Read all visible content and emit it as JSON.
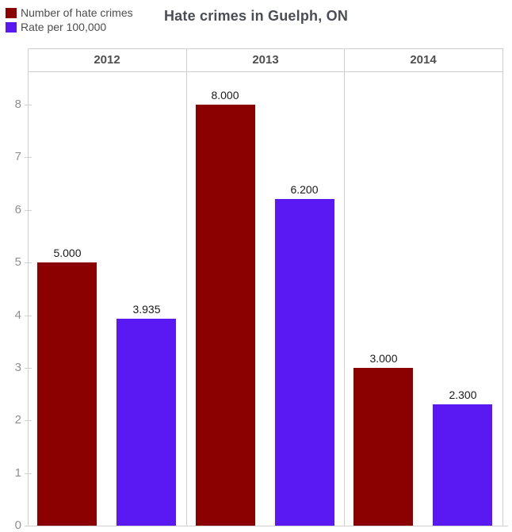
{
  "title": "Hate crimes in Guelph, ON",
  "legend": {
    "items": [
      {
        "label": "Number of hate crimes",
        "color": "#8B0000"
      },
      {
        "label": "Rate per 100,000",
        "color": "#5A18F2"
      }
    ]
  },
  "chart_data": {
    "type": "bar",
    "title": "Hate crimes in Guelph, ON",
    "categories": [
      "2012",
      "2013",
      "2014"
    ],
    "series": [
      {
        "name": "Number of hate crimes",
        "color": "#8B0000",
        "values": [
          5.0,
          8.0,
          3.0
        ],
        "value_labels": [
          "5.000",
          "8.000",
          "3.000"
        ]
      },
      {
        "name": "Rate per 100,000",
        "color": "#5A18F2",
        "values": [
          3.935,
          6.2,
          2.3
        ],
        "value_labels": [
          "3.935",
          "6.200",
          "2.300"
        ]
      }
    ],
    "y_axis": {
      "ticks": [
        0,
        1,
        2,
        3,
        4,
        5,
        6,
        7,
        8
      ],
      "range": [
        0,
        8.63
      ]
    },
    "grid": false,
    "legend_position": "top-left",
    "facets": true
  },
  "colors": {
    "axis_line": "#cfcfcf",
    "tick_label": "#8f8f8f",
    "facet_label": "#4f4f4f",
    "value_label": "#1a1a1a",
    "title": "#4a4e54",
    "legend_text": "#4d4d4d",
    "background": "#ffffff"
  }
}
